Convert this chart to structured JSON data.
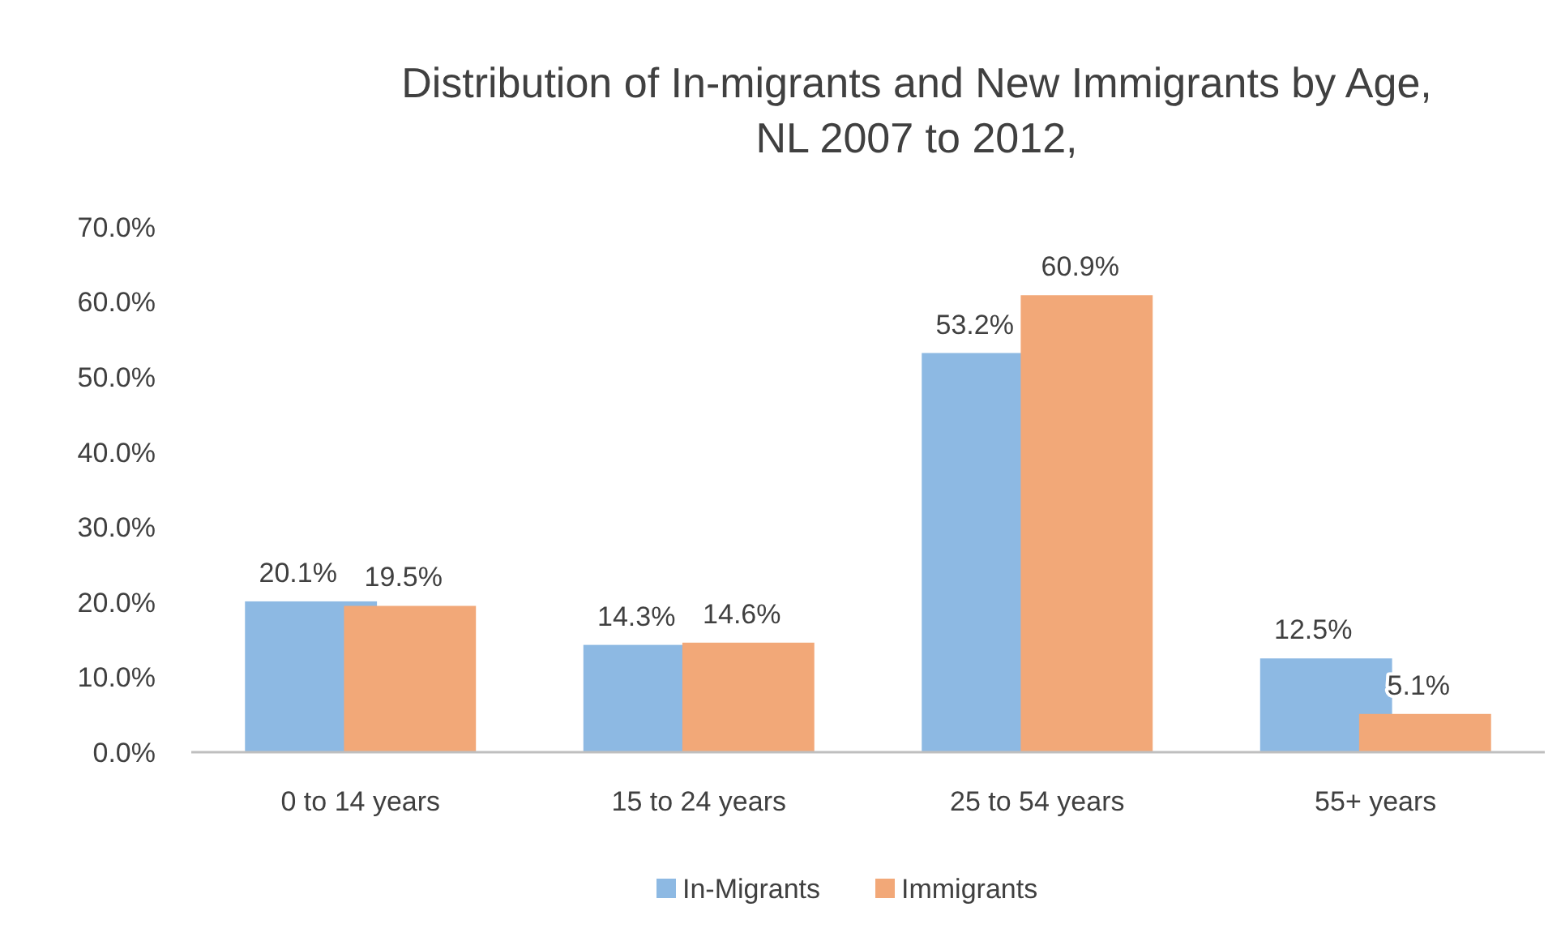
{
  "chart_data": {
    "type": "bar",
    "title": "Distribution of In-migrants and New Immigrants by Age, NL 2007 to 2012,",
    "categories": [
      "0 to 14 years",
      "15 to 24 years",
      "25 to 54 years",
      "55+ years"
    ],
    "series": [
      {
        "name": "In-Migrants",
        "color": "#8db9e3",
        "values": [
          20.1,
          14.3,
          53.2,
          12.5
        ],
        "value_labels": [
          "20.1%",
          "14.3%",
          "53.2%",
          "12.5%"
        ]
      },
      {
        "name": "Immigrants",
        "color": "#f2a878",
        "values": [
          19.5,
          14.6,
          60.9,
          5.1
        ],
        "value_labels": [
          "19.5%",
          "14.6%",
          "60.9%",
          "5.1%"
        ]
      }
    ],
    "ylim": [
      0,
      70
    ],
    "yticks": [
      {
        "value": 0,
        "label": "0.0%"
      },
      {
        "value": 10,
        "label": "10.0%"
      },
      {
        "value": 20,
        "label": "20.0%"
      },
      {
        "value": 30,
        "label": "30.0%"
      },
      {
        "value": 40,
        "label": "40.0%"
      },
      {
        "value": 50,
        "label": "50.0%"
      },
      {
        "value": 60,
        "label": "60.0%"
      },
      {
        "value": 70,
        "label": "70.0%"
      }
    ],
    "grid": false,
    "legend": "bottom"
  }
}
